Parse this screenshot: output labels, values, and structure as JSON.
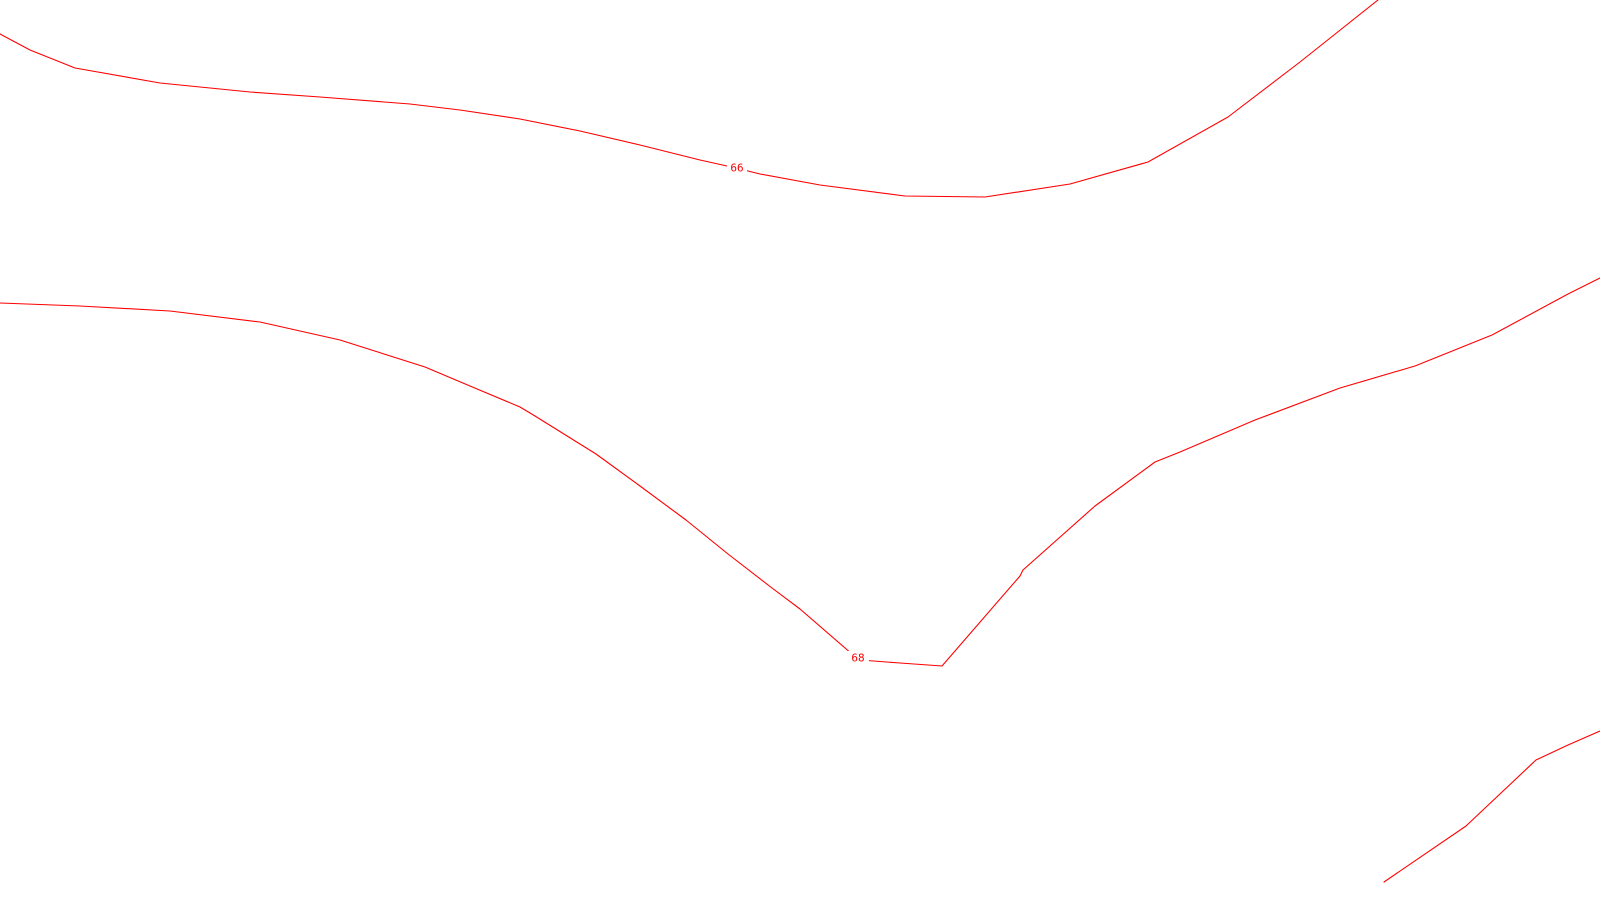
{
  "map": {
    "line_color": "#ff0000",
    "background_color": "#ffffff",
    "contours": [
      {
        "label": "66"
      },
      {
        "label": "68"
      },
      {
        "label": ""
      }
    ]
  }
}
